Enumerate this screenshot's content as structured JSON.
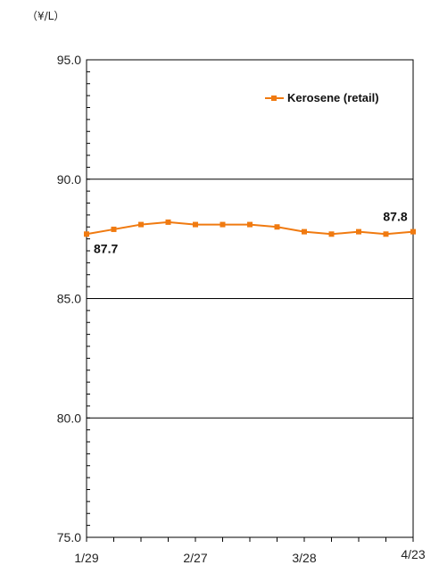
{
  "chart_data": {
    "type": "line",
    "unit_label": "（¥/L）",
    "ylim": [
      75.0,
      95.0
    ],
    "yticks": [
      "75.0",
      "80.0",
      "85.0",
      "90.0",
      "95.0"
    ],
    "ytick_values": [
      75.0,
      80.0,
      85.0,
      90.0,
      95.0
    ],
    "grid": true,
    "legend_position": "top-right",
    "x_tick_labels": [
      {
        "label": "1/29",
        "index": 0
      },
      {
        "label": "2/27",
        "index": 4
      },
      {
        "label": "3/28",
        "index": 8
      },
      {
        "label": "4/23",
        "index": 12
      }
    ],
    "series": [
      {
        "name": "Kerosene (retail)",
        "color": "#f07a10",
        "values": [
          87.7,
          87.9,
          88.1,
          88.2,
          88.1,
          88.1,
          88.1,
          88.0,
          87.8,
          87.7,
          87.8,
          87.7,
          87.8
        ]
      }
    ],
    "annotations": [
      {
        "text": "87.7",
        "index": 0,
        "position": "below"
      },
      {
        "text": "87.8",
        "index": 12,
        "position": "above"
      }
    ]
  }
}
